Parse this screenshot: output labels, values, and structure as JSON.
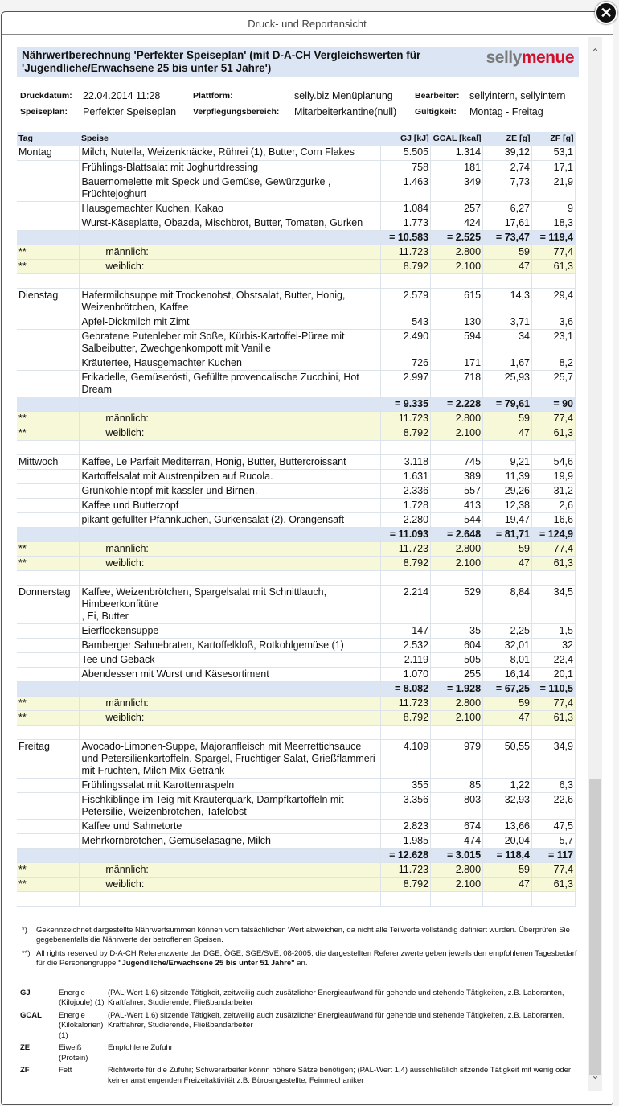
{
  "window": {
    "title": "Druck- und Reportansicht",
    "close_icon": "close-icon"
  },
  "report": {
    "title": "Nährwertberechnung 'Perfekter Speiseplan' (mit D-A-CH Vergleichswerten für 'Jugendliche/Erwachsene 25 bis unter 51 Jahre')",
    "logo_a": "selly",
    "logo_b": "menue",
    "logo_colors": {
      "a": "#7a7a7a",
      "b": "#d0102a"
    }
  },
  "meta": [
    {
      "label": "Druckdatum:",
      "value": "22.04.2014 11:28"
    },
    {
      "label": "Plattform:",
      "value": "selly.biz Menüplanung"
    },
    {
      "label": "Bearbeiter:",
      "value": "sellyintern, sellyintern"
    },
    {
      "label": "Speiseplan:",
      "value": "Perfekter Speiseplan"
    },
    {
      "label": "Verpflegungsbereich:",
      "value": "Mitarbeiterkantine(null)"
    },
    {
      "label": "Gültigkeit:",
      "value": "Montag - Freitag"
    }
  ],
  "table": {
    "headers": [
      "Tag",
      "Speise",
      "GJ [kJ]",
      "GCAL [kcal]",
      "ZE [g]",
      "ZF [g]"
    ],
    "ref_labels": {
      "marker": "**",
      "m": "männlich:",
      "w": "weiblich:"
    },
    "days": [
      {
        "day": "Montag",
        "meals": [
          [
            "Milch, Nutella, Weizenknäcke, Rührei (1), Butter, Corn Flakes",
            "5.505",
            "1.314",
            "39,12",
            "53,1"
          ],
          [
            "Frühlings-Blattsalat mit Joghurtdressing",
            "758",
            "181",
            "2,74",
            "17,1"
          ],
          [
            "Bauernomelette mit Speck und Gemüse, Gewürzgurke , Früchtejoghurt",
            "1.463",
            "349",
            "7,73",
            "21,9"
          ],
          [
            "Hausgemachter Kuchen, Kakao",
            "1.084",
            "257",
            "6,27",
            "9"
          ],
          [
            "Wurst-Käseplatte, Obazda, Mischbrot, Butter, Tomaten, Gurken",
            "1.773",
            "424",
            "17,61",
            "18,3"
          ]
        ],
        "sum": [
          "= 10.583",
          "= 2.525",
          "= 73,47",
          "= 119,4"
        ],
        "m": [
          "11.723",
          "2.800",
          "59",
          "77,4"
        ],
        "w": [
          "8.792",
          "2.100",
          "47",
          "61,3"
        ]
      },
      {
        "day": "Dienstag",
        "meals": [
          [
            "Hafermilchsuppe mit Trockenobst, Obstsalat, Butter, Honig, Weizenbrötchen, Kaffee",
            "2.579",
            "615",
            "14,3",
            "29,4"
          ],
          [
            "Apfel-Dickmilch mit Zimt",
            "543",
            "130",
            "3,71",
            "3,6"
          ],
          [
            "Gebratene Putenleber mit Soße, Kürbis-Kartoffel-Püree mit Salbeibutter, Zwechgenkompott mit Vanille",
            "2.490",
            "594",
            "34",
            "23,1"
          ],
          [
            "Kräutertee, Hausgemachter Kuchen",
            "726",
            "171",
            "1,67",
            "8,2"
          ],
          [
            "Frikadelle, Gemüserösti, Gefüllte provencalische Zucchini, Hot Dream",
            "2.997",
            "718",
            "25,93",
            "25,7"
          ]
        ],
        "sum": [
          "= 9.335",
          "= 2.228",
          "= 79,61",
          "= 90"
        ],
        "m": [
          "11.723",
          "2.800",
          "59",
          "77,4"
        ],
        "w": [
          "8.792",
          "2.100",
          "47",
          "61,3"
        ]
      },
      {
        "day": "Mittwoch",
        "meals": [
          [
            "Kaffee, Le Parfait Mediterran, Honig, Butter, Buttercroissant",
            "3.118",
            "745",
            "9,21",
            "54,6"
          ],
          [
            "Kartoffelsalat mit Austrenpilzen auf Rucola.",
            "1.631",
            "389",
            "11,39",
            "19,9"
          ],
          [
            "Grünkohleintopf mit kassler und Birnen.",
            "2.336",
            "557",
            "29,26",
            "31,2"
          ],
          [
            "Kaffee und Butterzopf",
            "1.728",
            "413",
            "12,38",
            "2,6"
          ],
          [
            "pikant gefüllter Pfannkuchen, Gurkensalat (2), Orangensaft",
            "2.280",
            "544",
            "19,47",
            "16,6"
          ]
        ],
        "sum": [
          "= 11.093",
          "= 2.648",
          "= 81,71",
          "= 124,9"
        ],
        "m": [
          "11.723",
          "2.800",
          "59",
          "77,4"
        ],
        "w": [
          "8.792",
          "2.100",
          "47",
          "61,3"
        ]
      },
      {
        "day": "Donnerstag",
        "meals": [
          [
            "Kaffee, Weizenbrötchen, Spargelsalat mit Schnittlauch, Himbeerkonfitüre\n, Ei, Butter",
            "2.214",
            "529",
            "8,84",
            "34,5"
          ],
          [
            "Eierflockensuppe",
            "147",
            "35",
            "2,25",
            "1,5"
          ],
          [
            "Bamberger Sahnebraten, Kartoffelkloß, Rotkohlgemüse (1)",
            "2.532",
            "604",
            "32,01",
            "32"
          ],
          [
            "Tee und Gebäck",
            "2.119",
            "505",
            "8,01",
            "22,4"
          ],
          [
            "Abendessen mit Wurst und Käsesortiment",
            "1.070",
            "255",
            "16,14",
            "20,1"
          ]
        ],
        "sum": [
          "= 8.082",
          "= 1.928",
          "= 67,25",
          "= 110,5"
        ],
        "m": [
          "11.723",
          "2.800",
          "59",
          "77,4"
        ],
        "w": [
          "8.792",
          "2.100",
          "47",
          "61,3"
        ]
      },
      {
        "day": "Freitag",
        "meals": [
          [
            "Avocado-Limonen-Suppe, Majoranfleisch mit Meerrettichsauce und Petersilienkartoffeln, Spargel, Fruchtiger Salat, Grießflammeri mit Früchten, Milch-Mix-Getränk",
            "4.109",
            "979",
            "50,55",
            "34,9"
          ],
          [
            "Frühlingssalat mit Karottenraspeln",
            "355",
            "85",
            "1,22",
            "6,3"
          ],
          [
            "Fischkiblinge im Teig mit Kräuterquark, Dampfkartoffeln mit Petersilie, Weizenbrötchen, Tafelobst",
            "3.356",
            "803",
            "32,93",
            "22,6"
          ],
          [
            "Kaffee und Sahnetorte",
            "2.823",
            "674",
            "13,66",
            "47,5"
          ],
          [
            "Mehrkornbrötchen, Gemüselasagne, Milch",
            "1.985",
            "474",
            "20,04",
            "5,7"
          ]
        ],
        "sum": [
          "= 12.628",
          "= 3.015",
          "= 118,4",
          "= 117"
        ],
        "m": [
          "11.723",
          "2.800",
          "59",
          "77,4"
        ],
        "w": [
          "8.792",
          "2.100",
          "47",
          "61,3"
        ]
      }
    ]
  },
  "footnotes": [
    {
      "mark": "*)",
      "text": "Gekennzeichnet dargestellte Nährwertsummen können vom tatsächlichen Wert abweichen, da nicht alle Teilwerte vollständig definiert wurden. Überprüfen Sie gegebenenfalls die Nährwerte der betroffenen Speisen."
    },
    {
      "mark": "**)",
      "text": "All rights reserved by D-A-CH Referenzwerte der DGE, ÖGE, SGE/SVE, 08-2005; die dargestellten Referenzwerte geben jeweils den empfohlenen Tagesbedarf für die Personengruppe ",
      "bold": "\"Jugendliche/Erwachsene 25 bis unter 51 Jahre\"",
      "tail": " an."
    }
  ],
  "legend": [
    {
      "key": "GJ",
      "name": "Energie (Kilojoule) (1)",
      "desc": "(PAL-Wert 1,6) sitzende Tätigkeit, zeitweilig auch zusätzlicher Energieaufwand für gehende und stehende Tätigkeiten, z.B. Laboranten, Kraftfahrer, Studierende, Fließbandarbeiter"
    },
    {
      "key": "GCAL",
      "name": "Energie (Kilokalorien) (1)",
      "desc": "(PAL-Wert 1,6) sitzende Tätigkeit, zeitweilig auch zusätzlicher Energieaufwand für gehende und stehende Tätigkeiten, z.B. Laboranten, Kraftfahrer, Studierende, Fließbandarbeiter"
    },
    {
      "key": "ZE",
      "name": "Eiweiß (Protein)",
      "desc": "Empfohlene Zufuhr"
    },
    {
      "key": "ZF",
      "name": "Fett",
      "desc": "Richtwerte für die Zufuhr; Schwerarbeiter könnn höhere Sätze benötigen; (PAL-Wert 1,4) ausschließlich sitzende Tätigkeit mit wenig oder keiner anstrengenden Freizeitaktivität z.B. Büroangestellte, Feinmechaniker"
    }
  ],
  "scrollbar": {
    "position_percent": 73
  }
}
